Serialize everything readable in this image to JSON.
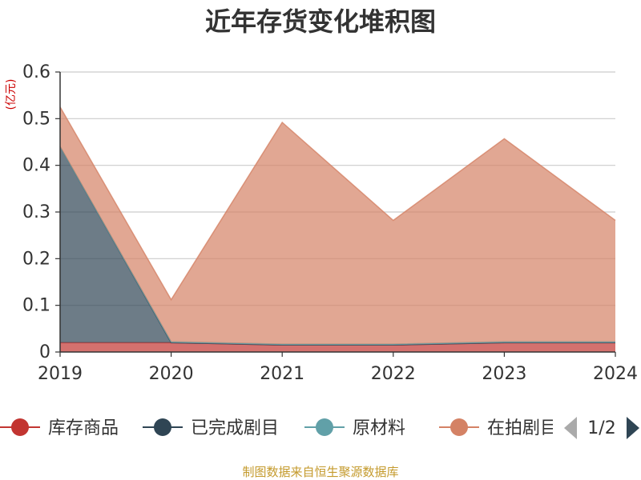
{
  "chart_data": {
    "type": "area",
    "stacked": true,
    "title": "近年存货变化堆积图",
    "ylabel": "(亿元)",
    "x": [
      "2019",
      "2020",
      "2021",
      "2022",
      "2023",
      "2024"
    ],
    "ylim": [
      0,
      0.6
    ],
    "yticks": [
      "0",
      "0.1",
      "0.2",
      "0.3",
      "0.4",
      "0.5",
      "0.6"
    ],
    "grid": true,
    "legend_position": "bottom",
    "series": [
      {
        "name": "库存商品",
        "color": "#c23531",
        "values": [
          0.02,
          0.02,
          0.015,
          0.015,
          0.02,
          0.02
        ]
      },
      {
        "name": "已完成剧目",
        "color": "#2f4554",
        "values": [
          0.42,
          0.0,
          0.0,
          0.0,
          0.0,
          0.0
        ]
      },
      {
        "name": "原材料",
        "color": "#61a0a8",
        "values": [
          0.0,
          0.002,
          0.002,
          0.002,
          0.002,
          0.002
        ]
      },
      {
        "name": "在拍剧目",
        "color": "#d48265",
        "values": [
          0.085,
          0.09,
          0.475,
          0.265,
          0.435,
          0.26
        ]
      }
    ],
    "legend_labels": [
      "库存商品",
      "已完成剧目",
      "原材料",
      "在拍剧目"
    ],
    "pager": "1/2",
    "source": "制图数据来自恒生聚源数据库"
  }
}
